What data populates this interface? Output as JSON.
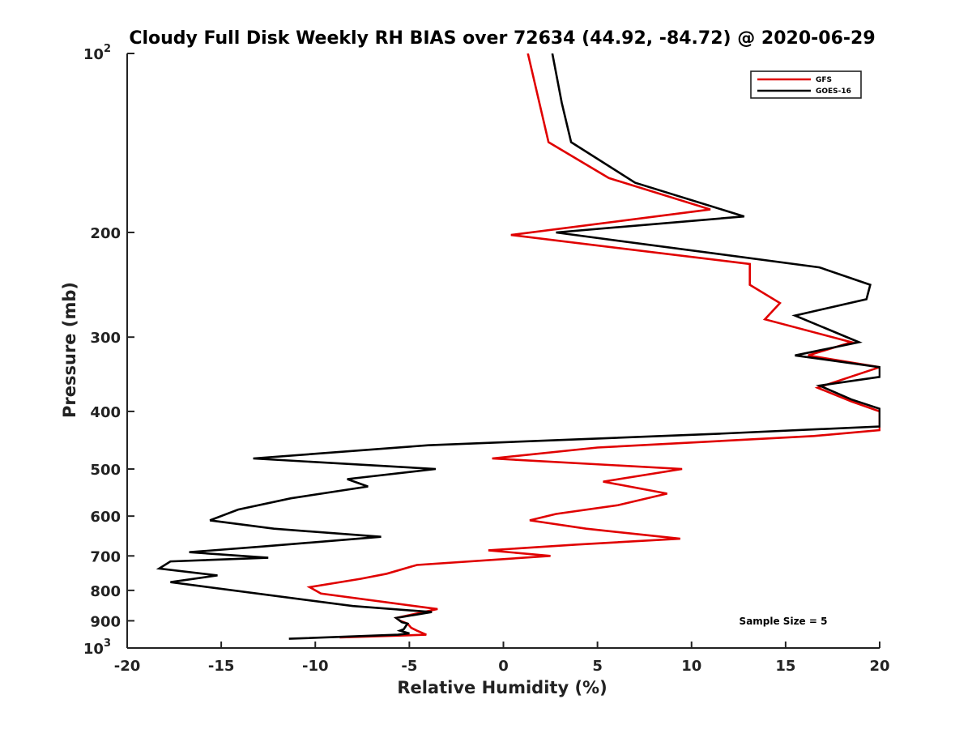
{
  "chart_data": {
    "type": "line",
    "title": "Cloudy Full Disk Weekly RH BIAS over 72634 (44.92, -84.72) @ 2020-06-29",
    "xlabel": "Relative Humidity (%)",
    "ylabel": "Pressure (mb)",
    "xlim": [
      -20,
      20
    ],
    "ylim": [
      1000,
      100
    ],
    "y_scale": "log",
    "y_reversed": true,
    "grid": false,
    "legend_position": "top-right",
    "x_ticks": [
      -20,
      -15,
      -10,
      -5,
      0,
      5,
      10,
      15,
      20
    ],
    "x_tick_labels": [
      "-20",
      "-15",
      "-10",
      "-5",
      "0",
      "5",
      "10",
      "15",
      "20"
    ],
    "y_ticks": [
      1000,
      900,
      800,
      700,
      600,
      500,
      400,
      300,
      200,
      100
    ],
    "y_tick_labels": [
      {
        "base": "10",
        "exp": "3"
      },
      {
        "base": "900",
        "exp": ""
      },
      {
        "base": "800",
        "exp": ""
      },
      {
        "base": "700",
        "exp": ""
      },
      {
        "base": "600",
        "exp": ""
      },
      {
        "base": "500",
        "exp": ""
      },
      {
        "base": "400",
        "exp": ""
      },
      {
        "base": "300",
        "exp": ""
      },
      {
        "base": "200",
        "exp": ""
      },
      {
        "base": "10",
        "exp": "2"
      }
    ],
    "annotation": "Sample Size = 5",
    "series": [
      {
        "name": "GFS",
        "color": "#e00000",
        "points": [
          [
            1.3,
            100
          ],
          [
            2.4,
            141
          ],
          [
            5.6,
            162
          ],
          [
            11,
            183
          ],
          [
            0.4,
            202
          ],
          [
            13.1,
            226
          ],
          [
            13.1,
            245
          ],
          [
            14.7,
            263
          ],
          [
            13.9,
            280
          ],
          [
            18.5,
            306
          ],
          [
            16.2,
            322
          ],
          [
            20,
            337
          ],
          [
            16.7,
            365
          ],
          [
            18.5,
            385
          ],
          [
            20,
            400
          ],
          [
            20,
            430
          ],
          [
            16.5,
            440
          ],
          [
            5,
            460
          ],
          [
            -0.6,
            480
          ],
          [
            9.5,
            500
          ],
          [
            5.3,
            525
          ],
          [
            8.7,
            550
          ],
          [
            6.1,
            575
          ],
          [
            2.8,
            595
          ],
          [
            1.4,
            610
          ],
          [
            4.4,
            630
          ],
          [
            9.4,
            655
          ],
          [
            3.9,
            670
          ],
          [
            -0.8,
            685
          ],
          [
            2.5,
            700
          ],
          [
            -4.6,
            725
          ],
          [
            -6.2,
            750
          ],
          [
            -7.6,
            765
          ],
          [
            -10.3,
            790
          ],
          [
            -9.7,
            810
          ],
          [
            -3.5,
            860
          ],
          [
            -5.7,
            890
          ],
          [
            -5.5,
            900
          ],
          [
            -5.1,
            910
          ],
          [
            -4.9,
            925
          ],
          [
            -4.6,
            935
          ],
          [
            -4.1,
            950
          ],
          [
            -8.7,
            960
          ]
        ]
      },
      {
        "name": "GOES-16",
        "color": "#000000",
        "points": [
          [
            2.6,
            100
          ],
          [
            3.1,
            121
          ],
          [
            3.6,
            141
          ],
          [
            7,
            165
          ],
          [
            12.8,
            188
          ],
          [
            2.8,
            200
          ],
          [
            16.8,
            229
          ],
          [
            19.5,
            245
          ],
          [
            19.3,
            259
          ],
          [
            15.5,
            276
          ],
          [
            18.9,
            306
          ],
          [
            15.5,
            322
          ],
          [
            20,
            337
          ],
          [
            20,
            350
          ],
          [
            16.8,
            362
          ],
          [
            18.5,
            382
          ],
          [
            20,
            396
          ],
          [
            20,
            424
          ],
          [
            11.5,
            436
          ],
          [
            -4,
            456
          ],
          [
            -13.3,
            480
          ],
          [
            -3.6,
            500
          ],
          [
            -8.3,
            520
          ],
          [
            -7.2,
            535
          ],
          [
            -11.3,
            560
          ],
          [
            -14.1,
            585
          ],
          [
            -15.6,
            610
          ],
          [
            -12.2,
            630
          ],
          [
            -6.5,
            650
          ],
          [
            -12.8,
            675
          ],
          [
            -16.7,
            690
          ],
          [
            -12.5,
            705
          ],
          [
            -17.7,
            715
          ],
          [
            -18.3,
            735
          ],
          [
            -15.2,
            755
          ],
          [
            -17.7,
            775
          ],
          [
            -8,
            850
          ],
          [
            -3.8,
            870
          ],
          [
            -5.7,
            890
          ],
          [
            -5.4,
            905
          ],
          [
            -5.1,
            910
          ],
          [
            -5.3,
            930
          ],
          [
            -5.5,
            935
          ],
          [
            -5.0,
            945
          ],
          [
            -5.6,
            950
          ],
          [
            -11.4,
            965
          ]
        ]
      }
    ]
  }
}
